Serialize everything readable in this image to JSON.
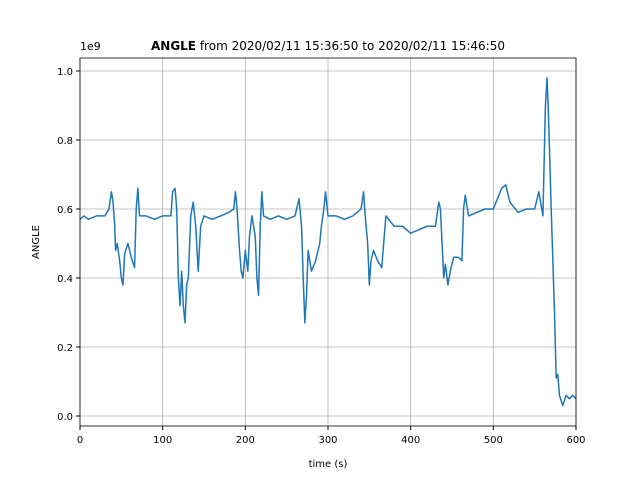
{
  "chart_data": {
    "type": "line",
    "title_bold": "ANGLE",
    "title": " from 2020/02/11 15:36:50 to 2020/02/11 15:46:50",
    "x_label": "time (s)",
    "y_label": "ANGLE",
    "y_offset_label": "1e9",
    "x": [
      0,
      5,
      10,
      20,
      30,
      35,
      38,
      40,
      42,
      43,
      45,
      48,
      50,
      52,
      54,
      58,
      62,
      66,
      68,
      70,
      72,
      80,
      90,
      100,
      110,
      112,
      115,
      117,
      119,
      121,
      123,
      125,
      127,
      129,
      131,
      134,
      137,
      140,
      143,
      146,
      150,
      160,
      170,
      180,
      186,
      188,
      190,
      193,
      195,
      197,
      200,
      203,
      205,
      208,
      212,
      214,
      216,
      218,
      220,
      222,
      230,
      240,
      250,
      260,
      265,
      268,
      270,
      272,
      274,
      276,
      280,
      285,
      290,
      292,
      295,
      297,
      300,
      310,
      320,
      330,
      340,
      343,
      345,
      348,
      350,
      352,
      355,
      360,
      365,
      370,
      380,
      390,
      400,
      410,
      420,
      430,
      434,
      436,
      438,
      440,
      442,
      445,
      448,
      452,
      458,
      462,
      464,
      466,
      470,
      480,
      490,
      500,
      510,
      515,
      520,
      530,
      540,
      550,
      555,
      560,
      563,
      565,
      567,
      570,
      572,
      574,
      576,
      578,
      580,
      584,
      588,
      592,
      596,
      600
    ],
    "series": [
      {
        "name": "ANGLE",
        "color": "#1f77b4",
        "values": [
          0.57,
          0.58,
          0.57,
          0.58,
          0.58,
          0.6,
          0.65,
          0.62,
          0.55,
          0.48,
          0.5,
          0.45,
          0.4,
          0.38,
          0.47,
          0.5,
          0.46,
          0.43,
          0.6,
          0.66,
          0.58,
          0.58,
          0.57,
          0.58,
          0.58,
          0.65,
          0.66,
          0.6,
          0.4,
          0.32,
          0.42,
          0.32,
          0.27,
          0.38,
          0.4,
          0.58,
          0.62,
          0.55,
          0.42,
          0.55,
          0.58,
          0.57,
          0.58,
          0.59,
          0.6,
          0.65,
          0.6,
          0.48,
          0.42,
          0.4,
          0.48,
          0.42,
          0.52,
          0.58,
          0.52,
          0.4,
          0.35,
          0.55,
          0.65,
          0.58,
          0.57,
          0.58,
          0.57,
          0.58,
          0.63,
          0.55,
          0.4,
          0.27,
          0.35,
          0.48,
          0.42,
          0.45,
          0.5,
          0.55,
          0.6,
          0.65,
          0.58,
          0.58,
          0.57,
          0.58,
          0.6,
          0.65,
          0.58,
          0.5,
          0.38,
          0.45,
          0.48,
          0.45,
          0.43,
          0.58,
          0.55,
          0.55,
          0.53,
          0.54,
          0.55,
          0.55,
          0.62,
          0.6,
          0.5,
          0.4,
          0.44,
          0.38,
          0.42,
          0.46,
          0.46,
          0.45,
          0.6,
          0.64,
          0.58,
          0.59,
          0.6,
          0.6,
          0.66,
          0.67,
          0.62,
          0.59,
          0.6,
          0.6,
          0.65,
          0.58,
          0.9,
          0.98,
          0.85,
          0.6,
          0.45,
          0.3,
          0.11,
          0.12,
          0.06,
          0.03,
          0.06,
          0.05,
          0.06,
          0.05
        ]
      }
    ],
    "xlim": [
      0,
      600
    ],
    "xticks": [
      0,
      100,
      200,
      300,
      400,
      500,
      600
    ],
    "ylim": [
      -0.029,
      1.0377
    ],
    "yticks": [
      {
        "value": 0,
        "label": "0.0"
      },
      0.2,
      0.4,
      0.6,
      0.8,
      {
        "value": 1,
        "label": "1.0"
      }
    ],
    "grid": true
  }
}
